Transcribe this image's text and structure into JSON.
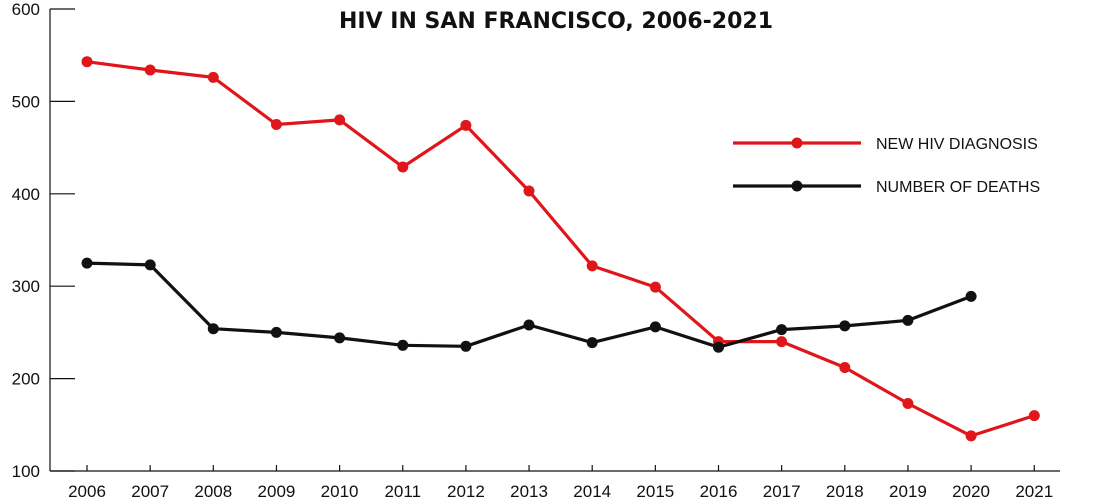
{
  "chart_data": {
    "type": "line",
    "title": "HIV IN SAN FRANCISCO, 2006-2021",
    "xlabel": "",
    "ylabel": "",
    "x": [
      2006,
      2007,
      2008,
      2009,
      2010,
      2011,
      2012,
      2013,
      2014,
      2015,
      2016,
      2017,
      2018,
      2019,
      2020,
      2021
    ],
    "x_tick_labels": [
      "2006",
      "2007",
      "2008",
      "2009",
      "2010",
      "2011",
      "2012",
      "2013",
      "2014",
      "2015",
      "2016",
      "2017",
      "2018",
      "2019",
      "2020",
      "2021"
    ],
    "ylim": [
      100,
      600
    ],
    "y_ticks": [
      100,
      200,
      300,
      400,
      500,
      600
    ],
    "y_tick_labels": [
      "100",
      "200",
      "300",
      "400",
      "500",
      "600"
    ],
    "grid": false,
    "legend_position": "right",
    "series": [
      {
        "name": "NEW HIV DIAGNOSIS",
        "color": "#e0161b",
        "values": [
          543,
          534,
          526,
          475,
          480,
          429,
          474,
          403,
          322,
          299,
          240,
          240,
          212,
          173,
          138,
          160
        ]
      },
      {
        "name": "NUMBER OF DEATHS",
        "color": "#111111",
        "values": [
          325,
          323,
          254,
          250,
          244,
          236,
          235,
          258,
          239,
          256,
          234,
          253,
          257,
          263,
          289,
          null
        ]
      }
    ]
  }
}
